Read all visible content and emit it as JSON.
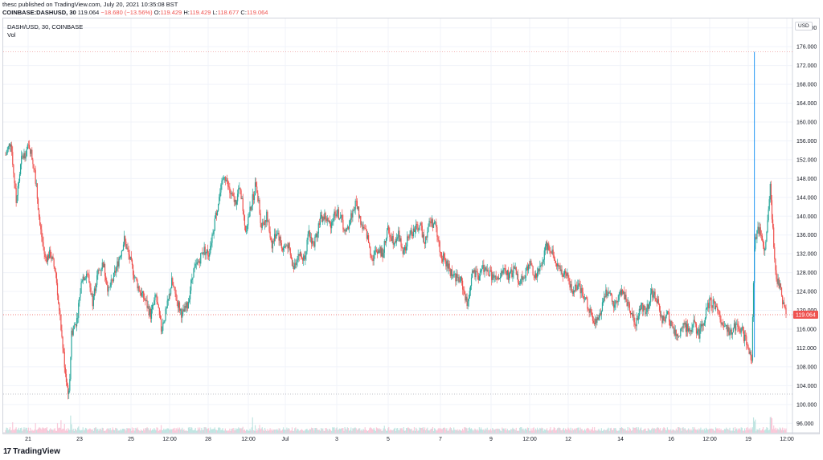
{
  "header": {
    "published": "thesc published on TradingView.com, July 20, 2021 10:35:08 BST",
    "symbol": "COINBASE:DASHUSD, 30",
    "last": "119.064",
    "change": "−18.680 (−13.56%)",
    "open_label": "O:",
    "open": "119.429",
    "high_label": "H:",
    "high": "119.429",
    "low_label": "L:",
    "low": "118.677",
    "close_label": "C:",
    "close": "119.064"
  },
  "legend": {
    "symbol": "DASH/USD, 30, COINBASE",
    "volume": "Vol"
  },
  "currency": "USD",
  "last_price_label": "119.064",
  "footer": {
    "logo_mark": "17",
    "brand": "TradingView"
  },
  "colors": {
    "up": "#26a69a",
    "down": "#ef5350",
    "grid": "#f0f3fa",
    "axis": "#d1d4dc",
    "crosshair": "#2196f3"
  },
  "chart_data": {
    "type": "candlestick",
    "title": "DASH/USD, 30, COINBASE",
    "ylabel": "USD",
    "ylim": [
      94,
      182
    ],
    "y_ticks": [
      "96.000",
      "100.000",
      "104.000",
      "108.000",
      "112.000",
      "116.000",
      "120.000",
      "124.000",
      "128.000",
      "132.000",
      "136.000",
      "140.000",
      "144.000",
      "148.000",
      "152.000",
      "156.000",
      "160.000",
      "164.000",
      "168.000",
      "172.000",
      "176.000",
      "180.000"
    ],
    "x_ticks": [
      "21",
      "23",
      "25",
      "12:00",
      "28",
      "12:00",
      "Jul",
      "3",
      "5",
      "7",
      "9",
      "12:00",
      "12",
      "14",
      "16",
      "12:00",
      "19",
      "12:00"
    ],
    "price_path": [
      [
        0,
        153
      ],
      [
        2,
        156
      ],
      [
        4,
        143
      ],
      [
        6,
        152
      ],
      [
        9,
        155
      ],
      [
        11,
        150
      ],
      [
        13,
        138
      ],
      [
        15,
        131
      ],
      [
        17,
        132
      ],
      [
        19,
        128
      ],
      [
        21,
        116
      ],
      [
        23,
        105
      ],
      [
        24,
        102
      ],
      [
        25,
        115
      ],
      [
        27,
        118
      ],
      [
        29,
        127
      ],
      [
        31,
        128
      ],
      [
        33,
        122
      ],
      [
        35,
        128
      ],
      [
        37,
        130
      ],
      [
        39,
        124
      ],
      [
        41,
        127
      ],
      [
        43,
        131
      ],
      [
        45,
        135
      ],
      [
        47,
        131
      ],
      [
        49,
        127
      ],
      [
        51,
        124
      ],
      [
        53,
        122
      ],
      [
        55,
        119
      ],
      [
        57,
        123
      ],
      [
        59,
        116
      ],
      [
        61,
        120
      ],
      [
        63,
        126
      ],
      [
        65,
        122
      ],
      [
        67,
        119
      ],
      [
        69,
        121
      ],
      [
        71,
        128
      ],
      [
        73,
        130
      ],
      [
        75,
        133
      ],
      [
        77,
        132
      ],
      [
        79,
        138
      ],
      [
        81,
        144
      ],
      [
        83,
        149
      ],
      [
        85,
        145
      ],
      [
        87,
        143
      ],
      [
        89,
        146
      ],
      [
        91,
        137
      ],
      [
        93,
        142
      ],
      [
        95,
        147
      ],
      [
        97,
        138
      ],
      [
        99,
        140
      ],
      [
        101,
        134
      ],
      [
        103,
        137
      ],
      [
        105,
        133
      ],
      [
        107,
        134
      ],
      [
        109,
        129
      ],
      [
        111,
        132
      ],
      [
        113,
        131
      ],
      [
        115,
        136
      ],
      [
        117,
        134
      ],
      [
        119,
        139
      ],
      [
        121,
        140
      ],
      [
        123,
        138
      ],
      [
        125,
        141
      ],
      [
        127,
        140
      ],
      [
        129,
        136
      ],
      [
        131,
        140
      ],
      [
        133,
        143
      ],
      [
        135,
        138
      ],
      [
        137,
        136
      ],
      [
        139,
        131
      ],
      [
        141,
        133
      ],
      [
        143,
        132
      ],
      [
        145,
        137
      ],
      [
        147,
        135
      ],
      [
        149,
        136
      ],
      [
        151,
        132
      ],
      [
        153,
        136
      ],
      [
        155,
        137
      ],
      [
        157,
        138
      ],
      [
        159,
        135
      ],
      [
        161,
        139
      ],
      [
        163,
        138
      ],
      [
        165,
        132
      ],
      [
        167,
        130
      ],
      [
        169,
        128
      ],
      [
        171,
        127
      ],
      [
        173,
        126
      ],
      [
        175,
        121
      ],
      [
        177,
        128
      ],
      [
        179,
        127
      ],
      [
        181,
        129
      ],
      [
        183,
        128
      ],
      [
        185,
        127
      ],
      [
        187,
        126
      ],
      [
        189,
        129
      ],
      [
        191,
        127
      ],
      [
        193,
        129
      ],
      [
        195,
        126
      ],
      [
        197,
        128
      ],
      [
        199,
        130
      ],
      [
        201,
        127
      ],
      [
        203,
        129
      ],
      [
        205,
        134
      ],
      [
        207,
        133
      ],
      [
        209,
        130
      ],
      [
        211,
        128
      ],
      [
        213,
        127
      ],
      [
        215,
        124
      ],
      [
        217,
        125
      ],
      [
        219,
        123
      ],
      [
        221,
        121
      ],
      [
        223,
        117
      ],
      [
        225,
        118
      ],
      [
        227,
        123
      ],
      [
        229,
        124
      ],
      [
        231,
        121
      ],
      [
        233,
        124
      ],
      [
        235,
        123
      ],
      [
        237,
        120
      ],
      [
        239,
        117
      ],
      [
        241,
        121
      ],
      [
        243,
        120
      ],
      [
        245,
        124
      ],
      [
        247,
        122
      ],
      [
        249,
        118
      ],
      [
        251,
        119
      ],
      [
        253,
        116
      ],
      [
        255,
        114
      ],
      [
        257,
        117
      ],
      [
        259,
        116
      ],
      [
        261,
        117
      ],
      [
        263,
        115
      ],
      [
        265,
        118
      ],
      [
        267,
        122
      ],
      [
        269,
        121
      ],
      [
        271,
        118
      ],
      [
        273,
        117
      ],
      [
        275,
        115
      ],
      [
        277,
        117
      ],
      [
        279,
        116
      ],
      [
        281,
        113
      ],
      [
        283,
        110
      ],
      [
        284,
        134
      ],
      [
        286,
        138
      ],
      [
        288,
        132
      ],
      [
        290,
        146
      ],
      [
        292,
        128
      ],
      [
        294,
        124
      ],
      [
        296,
        119
      ]
    ],
    "last_value": 119.064,
    "high_marker": 174.9,
    "low_marker": 102.2
  }
}
